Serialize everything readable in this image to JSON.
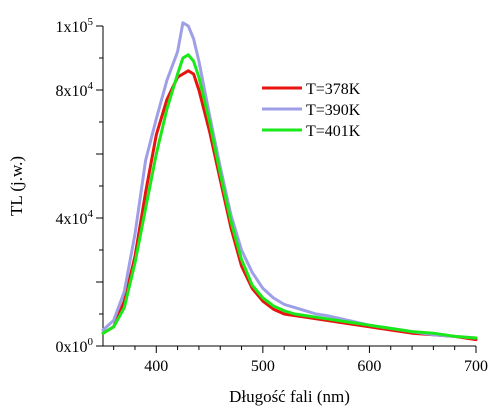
{
  "chart_data": {
    "type": "line",
    "xlabel": "Długość fali (nm)",
    "ylabel": "TL (j.w.)",
    "xlim": [
      350,
      700
    ],
    "ylim": [
      0,
      100000
    ],
    "x_ticks": [
      400,
      500,
      600,
      700
    ],
    "x_tick_labels": [
      "400",
      "500",
      "600",
      "700"
    ],
    "y_ticks": [
      0,
      40000,
      80000,
      100000
    ],
    "y_tick_labels": [
      {
        "mant": "0x10",
        "exp": "0"
      },
      {
        "mant": "4x10",
        "exp": "4"
      },
      {
        "mant": "8x10",
        "exp": "4"
      },
      {
        "mant": "1x10",
        "exp": "5"
      }
    ],
    "legend_position": "top-right",
    "grid": false,
    "series": [
      {
        "name": "T=378K",
        "color": "#e8130f",
        "x": [
          350,
          360,
          370,
          380,
          390,
          400,
          410,
          420,
          425,
          430,
          435,
          440,
          450,
          460,
          470,
          480,
          490,
          500,
          510,
          520,
          530,
          540,
          550,
          560,
          580,
          600,
          620,
          640,
          660,
          680,
          700
        ],
        "y": [
          4000,
          6000,
          14000,
          28000,
          48000,
          66000,
          77000,
          84000,
          85000,
          86000,
          85000,
          80000,
          67000,
          52000,
          37000,
          25000,
          18000,
          14000,
          11500,
          10000,
          9500,
          9000,
          8500,
          8000,
          7000,
          6000,
          5000,
          4000,
          3500,
          3000,
          2000
        ]
      },
      {
        "name": "T=390K",
        "color": "#9f9fe8",
        "x": [
          350,
          360,
          370,
          380,
          390,
          400,
          410,
          420,
          425,
          430,
          435,
          440,
          450,
          460,
          470,
          480,
          490,
          500,
          510,
          520,
          530,
          540,
          550,
          560,
          580,
          600,
          620,
          640,
          660,
          680,
          700
        ],
        "y": [
          5000,
          8000,
          17000,
          35000,
          58000,
          71000,
          83000,
          92000,
          101000,
          100000,
          96000,
          89000,
          72000,
          56000,
          41000,
          30000,
          23000,
          18000,
          15000,
          13000,
          12000,
          11000,
          10000,
          9500,
          8000,
          6500,
          5500,
          4500,
          3500,
          3000,
          2500
        ]
      },
      {
        "name": "T=401K",
        "color": "#19e819",
        "x": [
          350,
          360,
          370,
          380,
          390,
          400,
          410,
          420,
          425,
          430,
          435,
          440,
          450,
          460,
          470,
          480,
          490,
          500,
          510,
          520,
          530,
          540,
          550,
          560,
          580,
          600,
          620,
          640,
          660,
          680,
          700
        ],
        "y": [
          4000,
          6000,
          12000,
          26000,
          43000,
          60000,
          74000,
          85000,
          90000,
          91000,
          89000,
          84000,
          70000,
          54000,
          39000,
          27000,
          19000,
          15000,
          12500,
          11000,
          10000,
          9500,
          9000,
          8500,
          7500,
          6500,
          5500,
          4500,
          4000,
          3000,
          2500
        ]
      }
    ]
  }
}
